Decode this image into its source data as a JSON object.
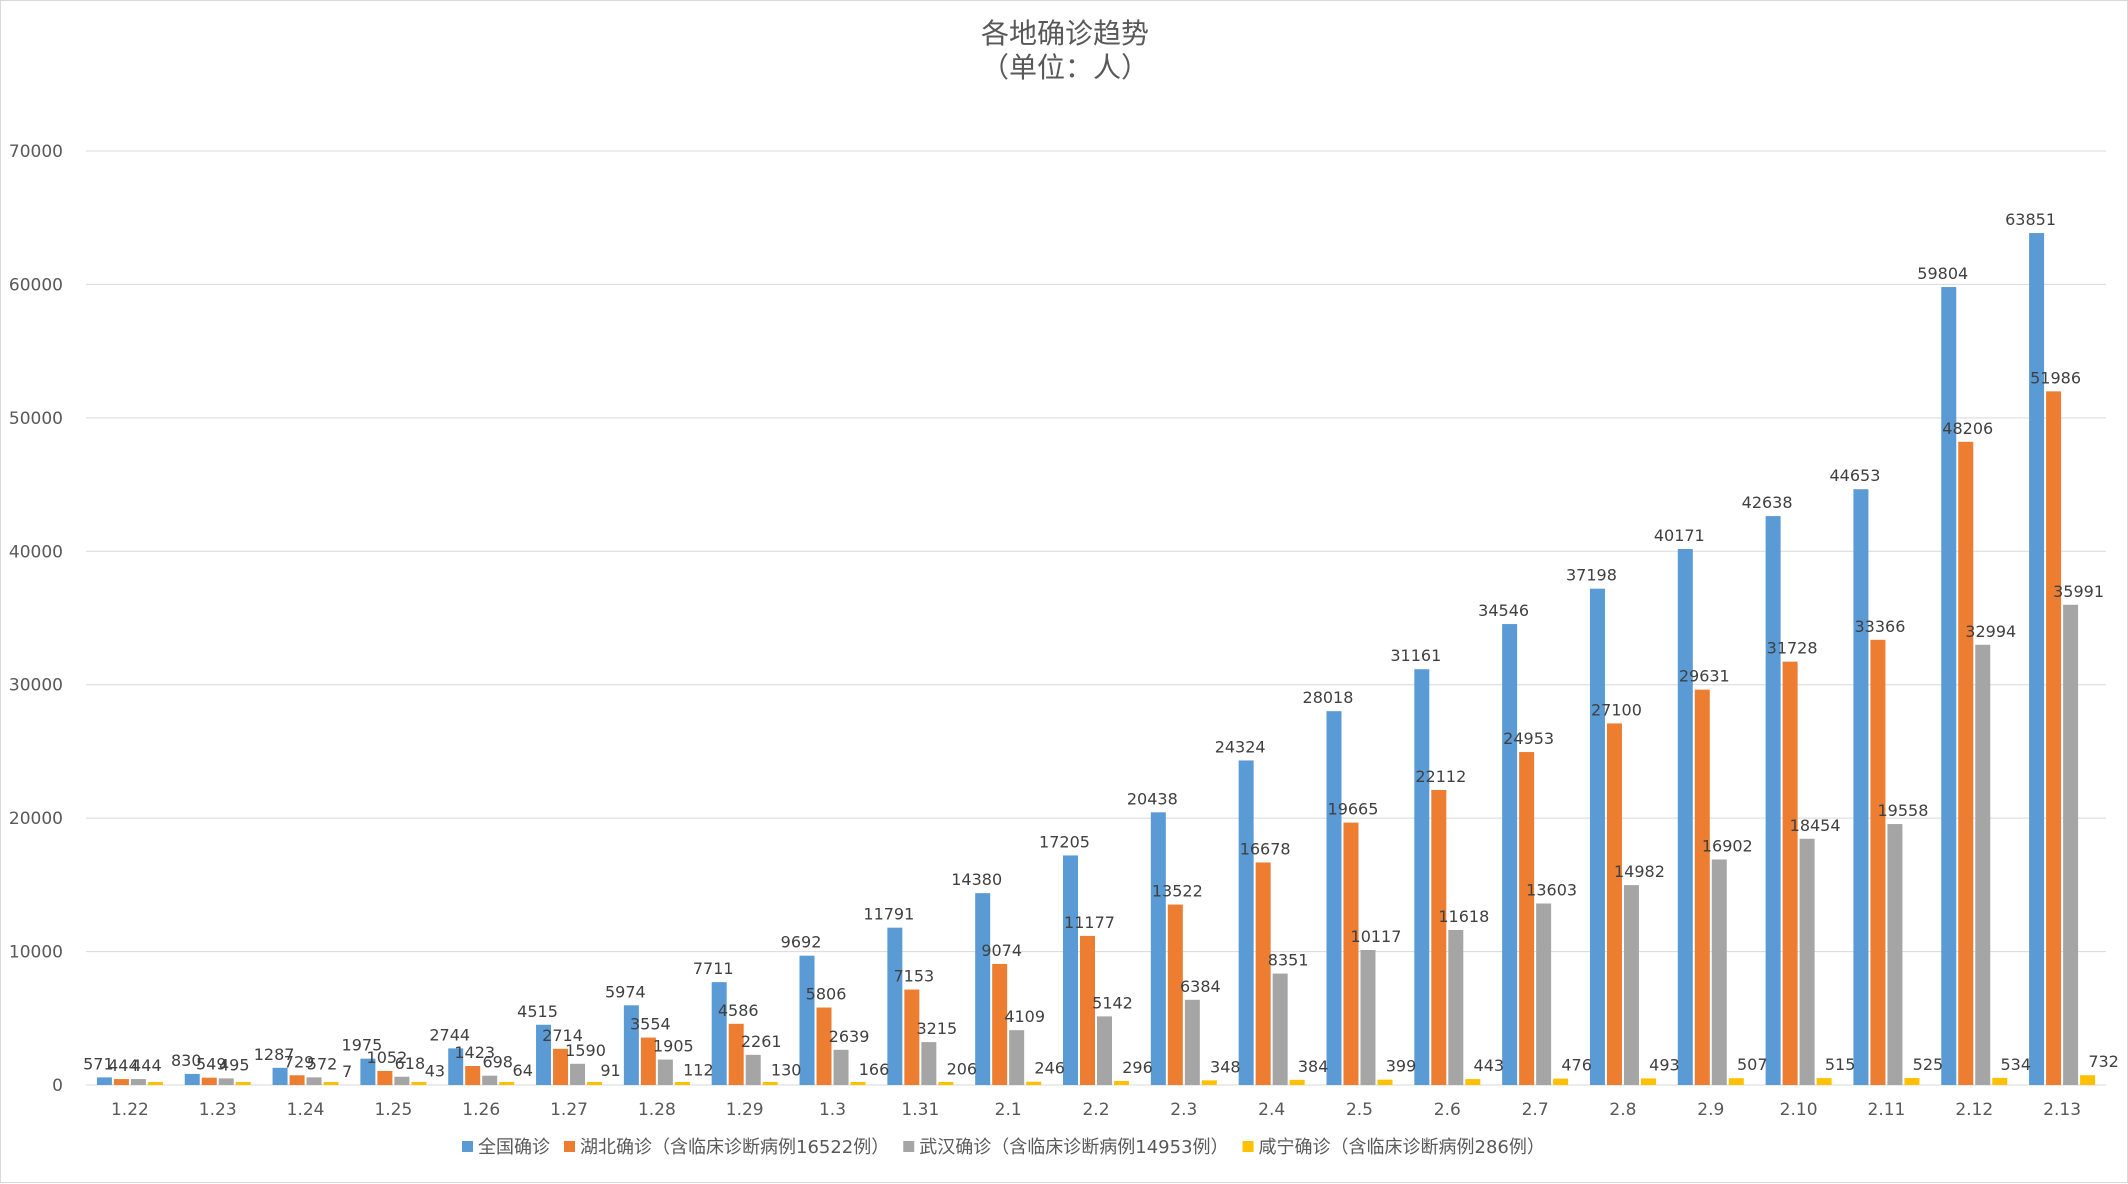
{
  "chart_data": {
    "type": "bar",
    "title": "各地确诊趋势",
    "subtitle": "（单位：人）",
    "xlabel": "",
    "ylabel": "",
    "ylim": [
      0,
      70000
    ],
    "yticks": [
      0,
      10000,
      20000,
      30000,
      40000,
      50000,
      60000,
      70000
    ],
    "grid": true,
    "legend_position": "bottom",
    "categories": [
      "1.22",
      "1.23",
      "1.24",
      "1.25",
      "1.26",
      "1.27",
      "1.28",
      "1.29",
      "1.3",
      "1.31",
      "2.1",
      "2.2",
      "2.3",
      "2.4",
      "2.5",
      "2.6",
      "2.7",
      "2.8",
      "2.9",
      "2.10",
      "2.11",
      "2.12",
      "2.13"
    ],
    "series": [
      {
        "name": "全国确诊",
        "color": "#5b9bd5",
        "values": [
          571,
          830,
          1287,
          1975,
          2744,
          4515,
          5974,
          7711,
          9692,
          11791,
          14380,
          17205,
          20438,
          24324,
          28018,
          31161,
          34546,
          37198,
          40171,
          42638,
          44653,
          59804,
          63851
        ]
      },
      {
        "name": "湖北确诊（含临床诊断病例16522例）",
        "color": "#ed7d31",
        "values": [
          444,
          549,
          729,
          1052,
          1423,
          2714,
          3554,
          4586,
          5806,
          7153,
          9074,
          11177,
          13522,
          16678,
          19665,
          22112,
          24953,
          27100,
          29631,
          31728,
          33366,
          48206,
          51986
        ]
      },
      {
        "name": "武汉确诊（含临床诊断病例14953例）",
        "color": "#a5a5a5",
        "values": [
          444,
          495,
          572,
          618,
          698,
          1590,
          1905,
          2261,
          2639,
          3215,
          4109,
          5142,
          6384,
          8351,
          10117,
          11618,
          13603,
          14982,
          16902,
          18454,
          19558,
          32994,
          35991
        ]
      },
      {
        "name": "咸宁确诊（含临床诊断病例286例）",
        "color": "#ffc000",
        "values": [
          0,
          0,
          7,
          43,
          64,
          91,
          112,
          130,
          166,
          206,
          246,
          296,
          348,
          384,
          399,
          443,
          476,
          493,
          507,
          515,
          525,
          534,
          732
        ]
      }
    ],
    "data_labels": [
      [
        "571",
        "830",
        "1287",
        "1975",
        "2744",
        "4515",
        "5974",
        "7711",
        "9692",
        "11791",
        "14380",
        "17205",
        "20438",
        "24324",
        "28018",
        "31161",
        "34546",
        "37198",
        "40171",
        "42638",
        "44653",
        "59804",
        "63851"
      ],
      [
        "444",
        "549",
        "729",
        "1052",
        "1423",
        "2714",
        "3554",
        "4586",
        "5806",
        "7153",
        "9074",
        "11177",
        "13522",
        "16678",
        "19665",
        "22112",
        "24953",
        "27100",
        "29631",
        "31728",
        "33366",
        "48206",
        "51986"
      ],
      [
        "444",
        "495",
        "572",
        "618",
        "698",
        "1590",
        "1905",
        "2261",
        "2639",
        "3215",
        "4109",
        "5142",
        "6384",
        "8351",
        "10117",
        "11618",
        "13603",
        "14982",
        "16902",
        "18454",
        "19558",
        "32994",
        "35991"
      ],
      [
        "",
        "",
        "7",
        "43",
        "64",
        "91",
        "112",
        "130",
        "166",
        "206",
        "246",
        "296",
        "348",
        "384",
        "399",
        "443",
        "476",
        "493",
        "507",
        "515",
        "525",
        "534",
        "732"
      ]
    ]
  },
  "colors": {
    "background": "#ffffff",
    "gridline": "#d9d9d9",
    "axis_text": "#595959",
    "label_text": "#404040"
  }
}
